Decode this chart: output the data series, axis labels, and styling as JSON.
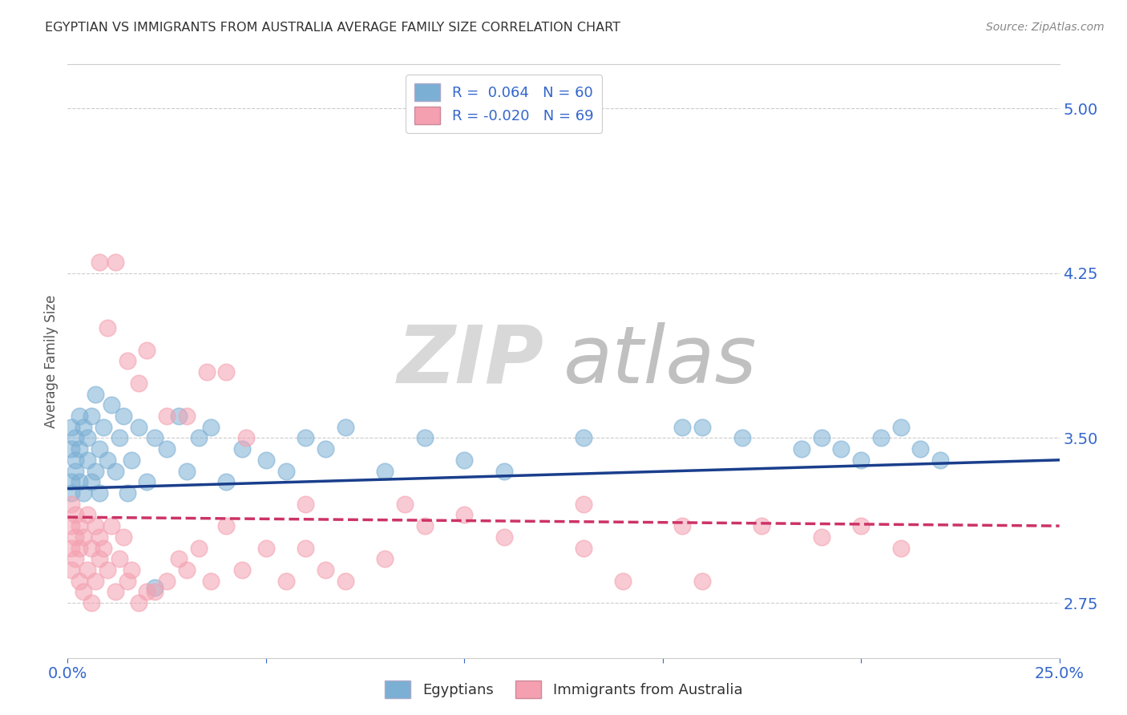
{
  "title": "EGYPTIAN VS IMMIGRANTS FROM AUSTRALIA AVERAGE FAMILY SIZE CORRELATION CHART",
  "source": "Source: ZipAtlas.com",
  "ylabel": "Average Family Size",
  "xlim": [
    0.0,
    0.25
  ],
  "ylim": [
    2.5,
    5.2
  ],
  "yticks": [
    2.75,
    3.5,
    4.25,
    5.0
  ],
  "blue_color": "#7bafd4",
  "pink_color": "#f4a0b0",
  "line_blue": "#1a3e8c",
  "line_pink": "#cc3366",
  "axis_color": "#3366CC",
  "legend_entries": [
    "Egyptians",
    "Immigrants from Australia"
  ],
  "blue_line_x0": 0.0,
  "blue_line_y0": 3.27,
  "blue_line_x1": 0.25,
  "blue_line_y1": 3.4,
  "pink_line_x0": 0.0,
  "pink_line_y0": 3.14,
  "pink_line_x1": 0.25,
  "pink_line_y1": 3.1,
  "blue_x": [
    0.001,
    0.001,
    0.001,
    0.001,
    0.002,
    0.002,
    0.002,
    0.003,
    0.003,
    0.003,
    0.004,
    0.004,
    0.005,
    0.005,
    0.006,
    0.006,
    0.007,
    0.007,
    0.008,
    0.008,
    0.009,
    0.01,
    0.011,
    0.012,
    0.013,
    0.014,
    0.015,
    0.016,
    0.018,
    0.02,
    0.022,
    0.025,
    0.028,
    0.03,
    0.033,
    0.036,
    0.04,
    0.044,
    0.05,
    0.055,
    0.06,
    0.065,
    0.07,
    0.08,
    0.09,
    0.1,
    0.11,
    0.13,
    0.155,
    0.16,
    0.17,
    0.185,
    0.19,
    0.195,
    0.2,
    0.205,
    0.21,
    0.215,
    0.22,
    0.022
  ],
  "blue_y": [
    3.3,
    3.45,
    3.55,
    3.25,
    3.4,
    3.5,
    3.35,
    3.6,
    3.3,
    3.45,
    3.55,
    3.25,
    3.4,
    3.5,
    3.6,
    3.3,
    3.7,
    3.35,
    3.45,
    3.25,
    3.55,
    3.4,
    3.65,
    3.35,
    3.5,
    3.6,
    3.25,
    3.4,
    3.55,
    3.3,
    3.5,
    3.45,
    3.6,
    3.35,
    3.5,
    3.55,
    3.3,
    3.45,
    3.4,
    3.35,
    3.5,
    3.45,
    3.55,
    3.35,
    3.5,
    3.4,
    3.35,
    3.5,
    3.55,
    3.55,
    3.5,
    3.45,
    3.5,
    3.45,
    3.4,
    3.5,
    3.55,
    3.45,
    3.4,
    2.82
  ],
  "pink_x": [
    0.001,
    0.001,
    0.001,
    0.001,
    0.002,
    0.002,
    0.002,
    0.003,
    0.003,
    0.003,
    0.004,
    0.004,
    0.005,
    0.005,
    0.006,
    0.006,
    0.007,
    0.007,
    0.008,
    0.008,
    0.009,
    0.01,
    0.011,
    0.012,
    0.013,
    0.014,
    0.015,
    0.016,
    0.018,
    0.02,
    0.022,
    0.025,
    0.028,
    0.03,
    0.033,
    0.036,
    0.04,
    0.044,
    0.05,
    0.055,
    0.06,
    0.065,
    0.07,
    0.08,
    0.09,
    0.1,
    0.11,
    0.13,
    0.14,
    0.155,
    0.16,
    0.175,
    0.19,
    0.2,
    0.21,
    0.02,
    0.025,
    0.03,
    0.035,
    0.04,
    0.045,
    0.06,
    0.085,
    0.13,
    0.008,
    0.01,
    0.012,
    0.015,
    0.018
  ],
  "pink_y": [
    3.1,
    3.2,
    3.0,
    2.9,
    3.15,
    2.95,
    3.05,
    3.1,
    2.85,
    3.0,
    2.8,
    3.05,
    2.9,
    3.15,
    3.0,
    2.75,
    3.1,
    2.85,
    3.05,
    2.95,
    3.0,
    2.9,
    3.1,
    2.8,
    2.95,
    3.05,
    2.85,
    2.9,
    2.75,
    2.8,
    2.8,
    2.85,
    2.95,
    2.9,
    3.0,
    2.85,
    3.1,
    2.9,
    3.0,
    2.85,
    3.0,
    2.9,
    2.85,
    2.95,
    3.1,
    3.15,
    3.05,
    3.2,
    2.85,
    3.1,
    2.85,
    3.1,
    3.05,
    3.1,
    3.0,
    3.9,
    3.6,
    3.6,
    3.8,
    3.8,
    3.5,
    3.2,
    3.2,
    3.0,
    4.3,
    4.0,
    4.3,
    3.85,
    3.75
  ]
}
